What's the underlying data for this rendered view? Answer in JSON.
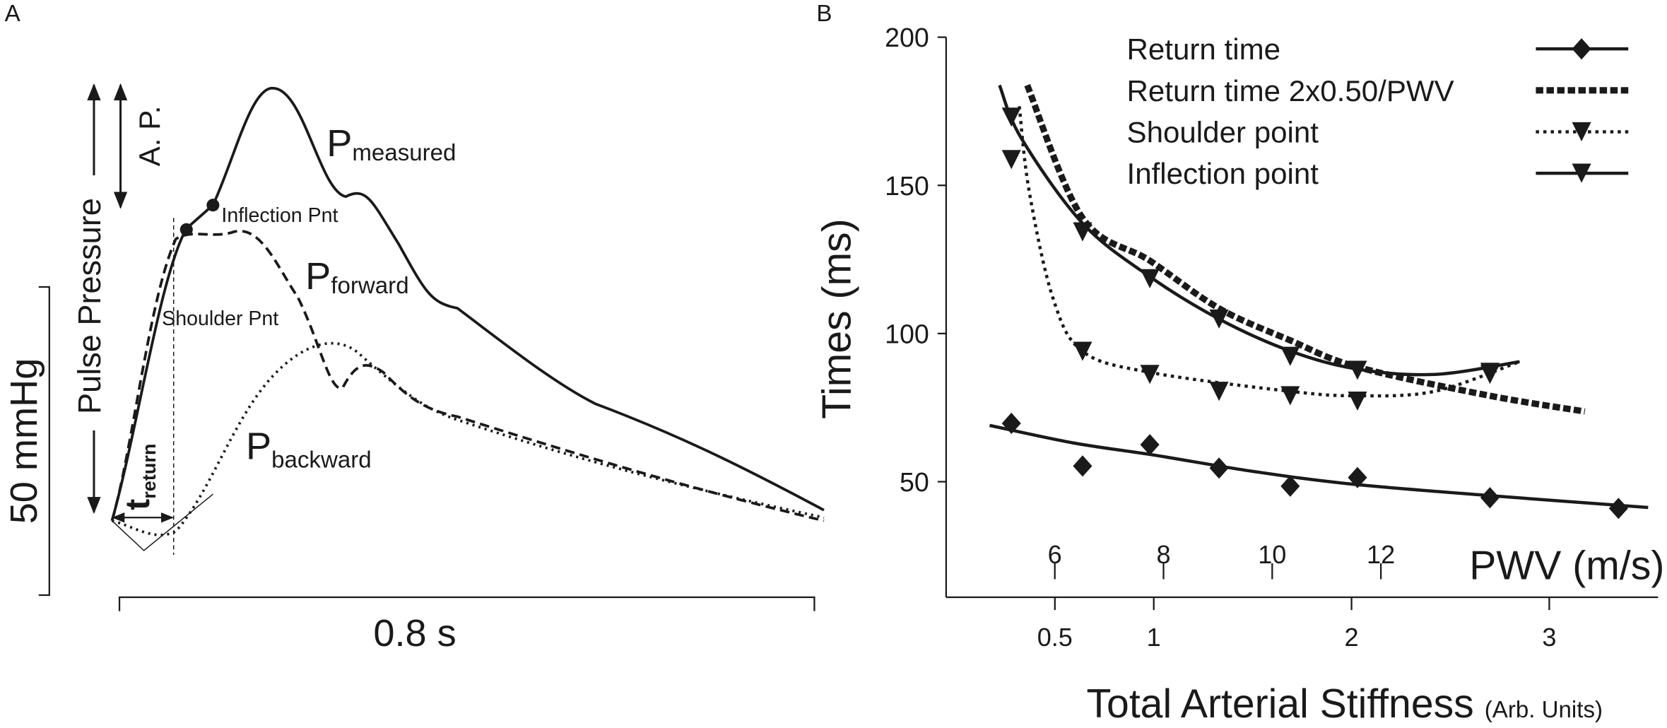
{
  "panel_a": {
    "label": "A",
    "pulse_pressure": "Pulse Pressure",
    "augmented_pressure": "A. P.",
    "p_measured": {
      "main": "P",
      "sub": "measured"
    },
    "p_forward": {
      "main": "P",
      "sub": "forward"
    },
    "p_backward": {
      "main": "P",
      "sub": "backward"
    },
    "t_return": {
      "main": "t",
      "sub": "return"
    },
    "inflection": "Inflection Pnt",
    "shoulder": "Shoulder Pnt",
    "scale_pressure": "50 mmHg",
    "scale_time": "0.8 s"
  },
  "chart_data": {
    "type": "scatter",
    "panel_label": "B",
    "xlabel": "Total Arterial Stiffness",
    "xlabel_unit": "(Arb. Units)",
    "ylabel": "Times (ms)",
    "x2label": "PWV (m/s)",
    "xlim": [
      -0.05,
      3.55
    ],
    "xticks": [
      0.5,
      1,
      2,
      3
    ],
    "x2lim": [
      4,
      17.1
    ],
    "x2ticks": [
      6,
      8,
      10,
      12
    ],
    "ylim": [
      11,
      200
    ],
    "yticks": [
      50,
      100,
      150,
      200
    ],
    "legend": "upper right",
    "series": [
      {
        "name": "Return time",
        "color": "#1a1a1a",
        "line_style": "solid",
        "marker": "diamond",
        "x": [
          0.28,
          0.64,
          0.98,
          1.33,
          1.69,
          2.03,
          2.7,
          3.35
        ],
        "values": [
          69.7,
          55.3,
          62.5,
          54.6,
          48.5,
          51.4,
          44.6,
          41.0
        ],
        "fit": {
          "x": [
            0.17,
            0.6,
            1.0,
            1.5,
            2.0,
            2.7,
            3.5
          ],
          "values": [
            69,
            63,
            59,
            53.5,
            49.2,
            45.3,
            41.3
          ]
        }
      },
      {
        "name": "Return time 2x0.50/PWV",
        "color": "#1a1a1a",
        "line_style": "dashed",
        "marker": null,
        "x": [
          0.36,
          0.64,
          0.98,
          1.33,
          1.69,
          2.03,
          2.7,
          3.18
        ],
        "values": [
          183.8,
          139,
          124.6,
          108.5,
          97.7,
          88.7,
          79.0,
          73.7
        ]
      },
      {
        "name": "Shoulder point",
        "color": "#1a1a1a",
        "line_style": "dotted",
        "marker": "triangle",
        "x": [
          0.28,
          0.64,
          0.98,
          1.33,
          1.69,
          2.03,
          2.7
        ],
        "values": [
          158.7,
          94,
          86.2,
          80.5,
          79,
          77.2,
          86.2
        ],
        "fit": {
          "x": [
            0.32,
            0.37,
            0.49,
            0.64,
            0.98,
            1.69,
            2.03,
            2.42,
            2.85
          ],
          "values": [
            176.7,
            148,
            112,
            94,
            86.9,
            80.5,
            79,
            80.5,
            90.5
          ]
        }
      },
      {
        "name": "Inflection point",
        "color": "#1a1a1a",
        "line_style": "solid",
        "marker": "triangle",
        "x": [
          0.28,
          0.64,
          0.98,
          1.33,
          1.69,
          2.03,
          2.7
        ],
        "values": [
          173,
          134.3,
          118.5,
          104.9,
          92.3,
          87.6,
          86.9
        ],
        "fit": {
          "x": [
            0.22,
            0.33,
            0.64,
            0.98,
            1.33,
            1.69,
            2.03,
            2.42,
            2.85
          ],
          "values": [
            183.8,
            165.9,
            137.2,
            119.2,
            104.9,
            94.1,
            88,
            86.2,
            90.5
          ]
        }
      }
    ]
  }
}
